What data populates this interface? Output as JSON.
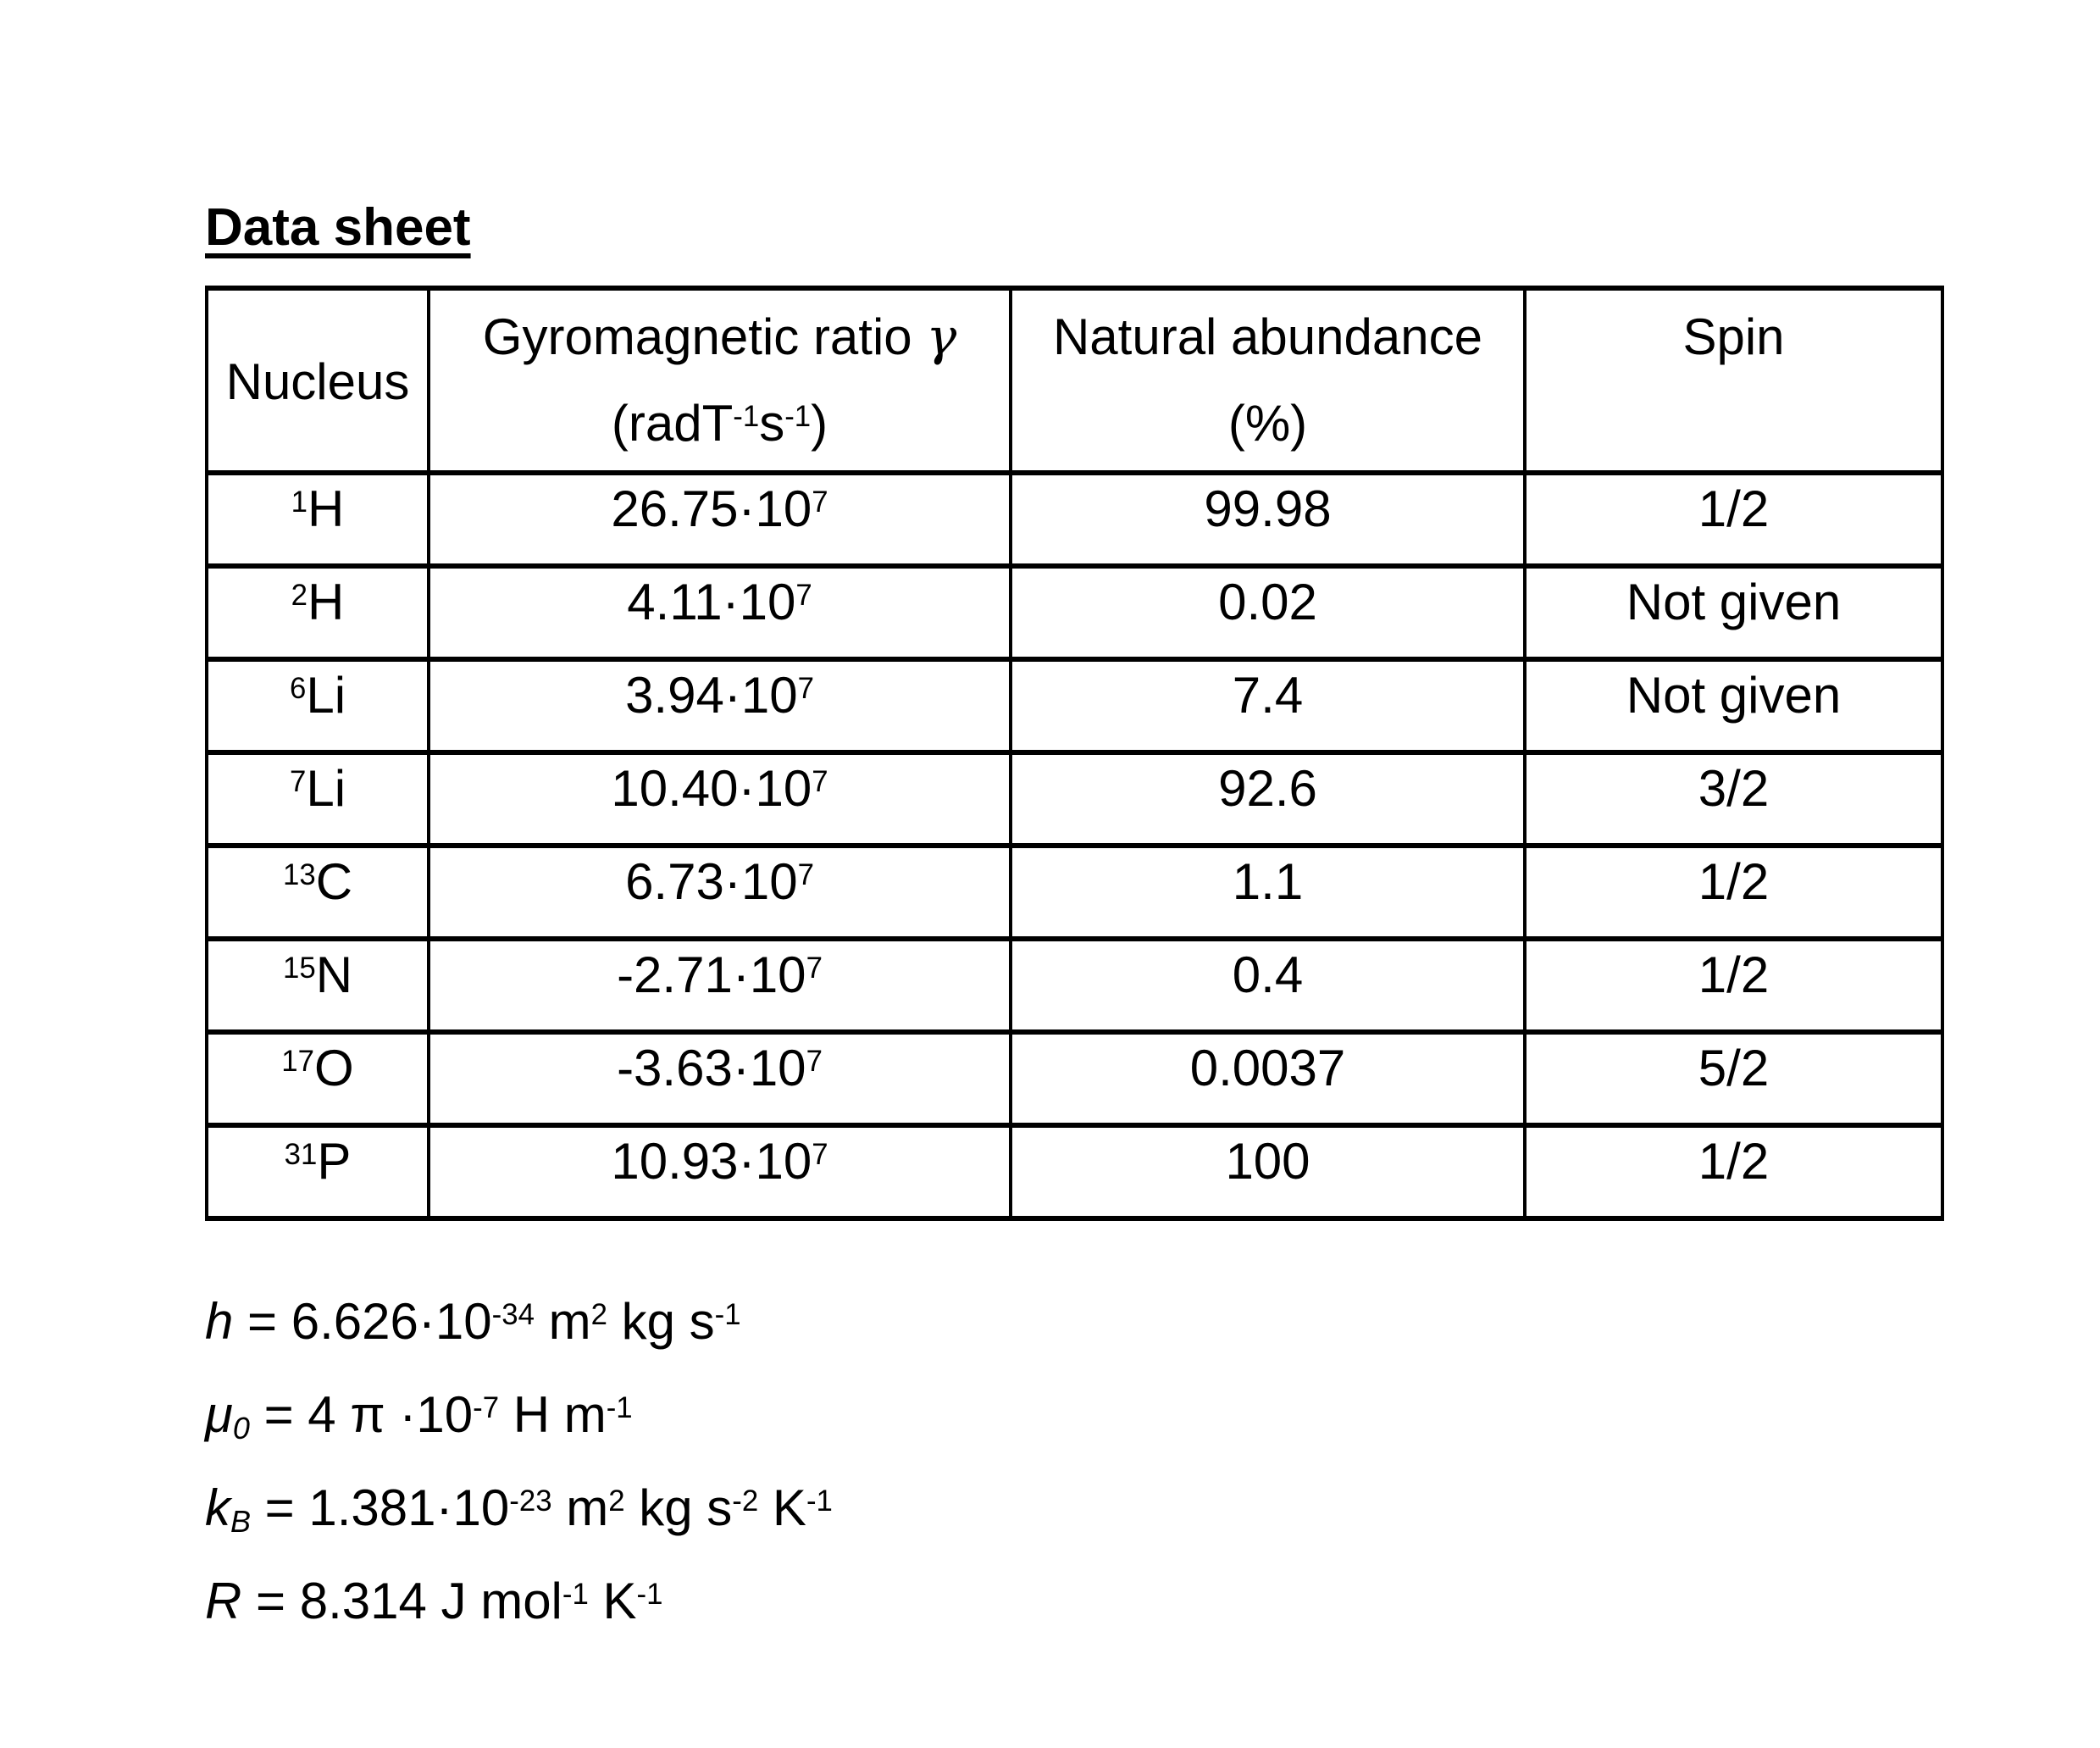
{
  "page": {
    "title": "Data sheet"
  },
  "table": {
    "headers": {
      "nucleus": "Nucleus",
      "gyro_label": "Gyromagnetic ratio ",
      "gyro_symbol": "γ",
      "gyro_unit_pre": "(radT",
      "gyro_unit_exp1": "-1",
      "gyro_unit_mid": "s",
      "gyro_unit_exp2": "-1",
      "gyro_unit_post": ")",
      "abundance_label": "Natural abundance",
      "abundance_unit": "(%)",
      "spin": "Spin"
    },
    "rows": [
      {
        "mass": "1",
        "symbol": "H",
        "gyro": "26.75·10",
        "gyro_exp": "7",
        "abundance": "99.98",
        "spin": "1/2"
      },
      {
        "mass": "2",
        "symbol": "H",
        "gyro": "4.11·10",
        "gyro_exp": "7",
        "abundance": "0.02",
        "spin": "Not given"
      },
      {
        "mass": "6",
        "symbol": "Li",
        "gyro": "3.94·10",
        "gyro_exp": "7",
        "abundance": "7.4",
        "spin": "Not given"
      },
      {
        "mass": "7",
        "symbol": "Li",
        "gyro": "10.40·10",
        "gyro_exp": "7",
        "abundance": "92.6",
        "spin": "3/2"
      },
      {
        "mass": "13",
        "symbol": "C",
        "gyro": "6.73·10",
        "gyro_exp": "7",
        "abundance": "1.1",
        "spin": "1/2"
      },
      {
        "mass": "15",
        "symbol": "N",
        "gyro": "-2.71·10",
        "gyro_exp": "7",
        "abundance": "0.4",
        "spin": "1/2"
      },
      {
        "mass": "17",
        "symbol": "O",
        "gyro": "-3.63·10",
        "gyro_exp": "7",
        "abundance": "0.0037",
        "spin": "5/2"
      },
      {
        "mass": "31",
        "symbol": "P",
        "gyro": "10.93·10",
        "gyro_exp": "7",
        "abundance": "100",
        "spin": "1/2"
      }
    ]
  },
  "constants": {
    "planck": {
      "symbol": "h",
      "body": " = 6.626·10",
      "exp": "-34",
      "unit1": " m",
      "unit1_exp": "2",
      "unit2": " kg s",
      "unit2_exp": "-1"
    },
    "mu0": {
      "symbol": "μ",
      "sub": "0",
      "body": " = 4 π ·10",
      "exp": "-7",
      "unit1": " H m",
      "unit1_exp": "-1"
    },
    "boltzmann": {
      "symbol": "k",
      "sub": "B",
      "body": " = 1.381·10",
      "exp": "-23",
      "unit1": " m",
      "unit1_exp": "2",
      "unit2": " kg s",
      "unit2_exp": "-2",
      "unit3": " K",
      "unit3_exp": "-1"
    },
    "gas": {
      "symbol": "R",
      "body": " = 8.314 J mol",
      "exp": "-1",
      "unit1": " K",
      "unit1_exp": "-1"
    }
  }
}
